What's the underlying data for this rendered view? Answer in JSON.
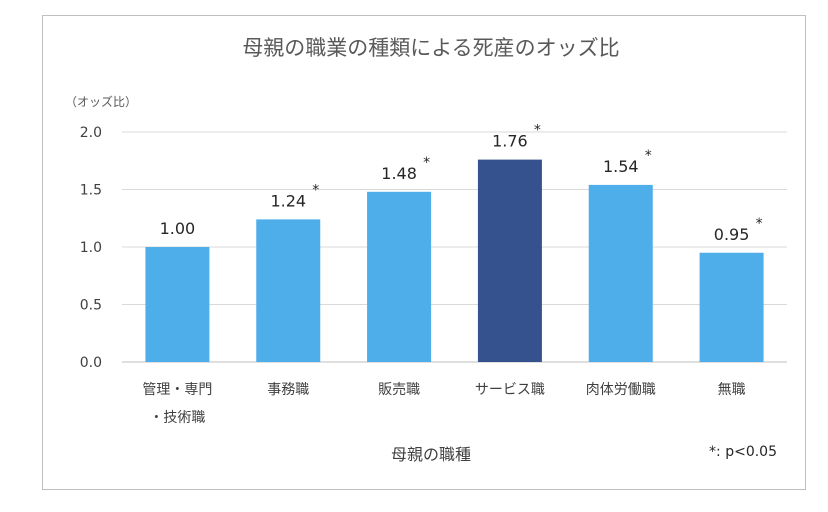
{
  "chart_data": {
    "type": "bar",
    "title": "母親の職業の種類による死産のオッズ比",
    "unit_label": "（オッズ比）",
    "xlabel": "母親の職種",
    "ylabel": "",
    "ylim": [
      0,
      2.0
    ],
    "yticks": [
      "0.0",
      "0.5",
      "1.0",
      "1.5",
      "2.0"
    ],
    "grid": true,
    "categories": [
      [
        "管理・専門",
        "・技術職"
      ],
      [
        "事務職"
      ],
      [
        "販売職"
      ],
      [
        "サービス職"
      ],
      [
        "肉体労働職"
      ],
      [
        "無職"
      ]
    ],
    "values": [
      1.0,
      1.24,
      1.48,
      1.76,
      1.54,
      0.95
    ],
    "value_labels": [
      "1.00",
      "1.24",
      "1.48",
      "1.76",
      "1.54",
      "0.95"
    ],
    "significant": [
      false,
      true,
      true,
      true,
      true,
      true
    ],
    "significance_marker": "*",
    "highlight_index": 3,
    "colors": {
      "bar": "#4daeea",
      "highlight": "#35528f",
      "grid": "#d9d9d9",
      "axis": "#bfbfbf"
    },
    "footnote": "*: p<0.05"
  }
}
